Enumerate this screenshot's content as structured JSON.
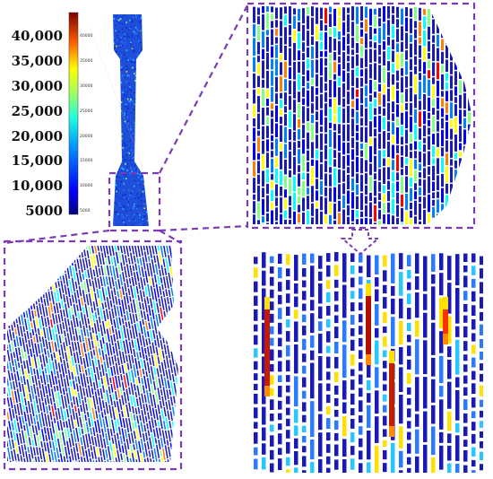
{
  "figure": {
    "scale_labels": [
      "40,000",
      "35,000",
      "30,000",
      "25,000",
      "20,000",
      "15,000",
      "10,000",
      "5000"
    ],
    "colorbar_labels": [
      "40000",
      "35000",
      "30000",
      "25000",
      "20000",
      "15000",
      "10000",
      "5000"
    ],
    "colormap": [
      "#00007f",
      "#0000ff",
      "#0080ff",
      "#00ffff",
      "#80ff80",
      "#ffff00",
      "#ff8000",
      "#ff0000",
      "#7f0000"
    ],
    "accent_color": "#7b3bb5",
    "line_color": "#1a1ab8",
    "icons": [
      "hollow-down-arrow-icon"
    ]
  }
}
